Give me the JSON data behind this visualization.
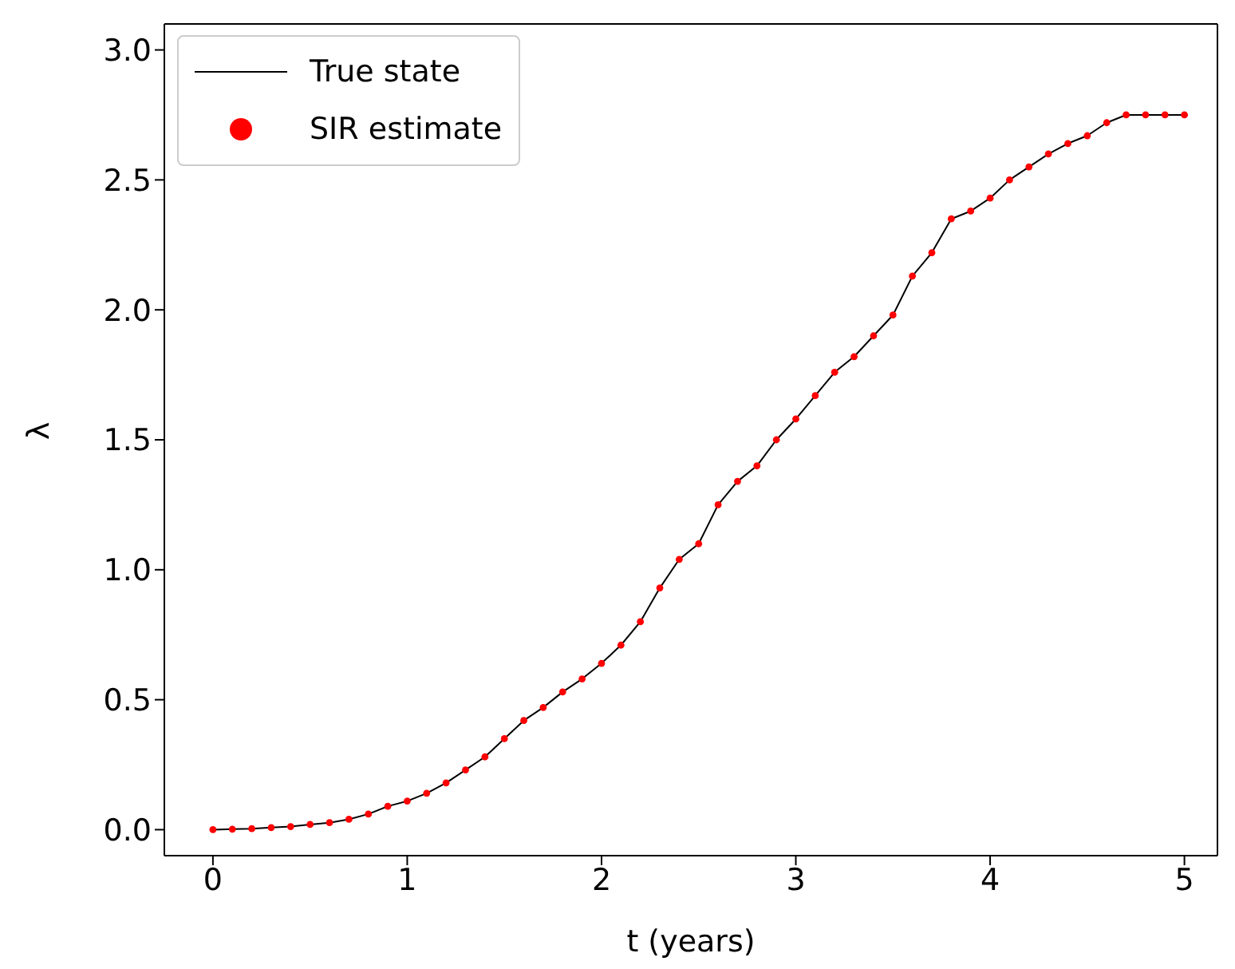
{
  "chart_data": {
    "type": "line",
    "xlabel": "t (years)",
    "ylabel": "λ",
    "x": [
      0,
      0.1,
      0.2,
      0.3,
      0.4,
      0.5,
      0.6,
      0.7,
      0.8,
      0.9,
      1.0,
      1.1,
      1.2,
      1.3,
      1.4,
      1.5,
      1.6,
      1.7,
      1.8,
      1.9,
      2.0,
      2.1,
      2.2,
      2.3,
      2.4,
      2.5,
      2.6,
      2.7,
      2.8,
      2.9,
      3.0,
      3.1,
      3.2,
      3.3,
      3.4,
      3.5,
      3.6,
      3.7,
      3.8,
      3.9,
      4.0,
      4.1,
      4.2,
      4.3,
      4.4,
      4.5,
      4.6,
      4.7,
      4.8,
      4.9,
      5.0
    ],
    "series": [
      {
        "name": "True state",
        "color": "#000000",
        "marker": "none",
        "values": [
          0,
          0.002,
          0.004,
          0.008,
          0.012,
          0.02,
          0.027,
          0.04,
          0.06,
          0.09,
          0.11,
          0.14,
          0.18,
          0.23,
          0.28,
          0.35,
          0.42,
          0.47,
          0.53,
          0.58,
          0.64,
          0.71,
          0.8,
          0.93,
          1.04,
          1.1,
          1.25,
          1.34,
          1.4,
          1.5,
          1.58,
          1.67,
          1.76,
          1.82,
          1.9,
          1.98,
          2.13,
          2.22,
          2.35,
          2.38,
          2.43,
          2.5,
          2.55,
          2.6,
          2.64,
          2.67,
          2.72,
          2.75,
          2.75,
          2.75,
          2.75
        ]
      },
      {
        "name": "SIR estimate",
        "type": "scatter",
        "color": "#ff0000",
        "marker": "circle",
        "values": [
          0,
          0.002,
          0.004,
          0.008,
          0.012,
          0.02,
          0.027,
          0.04,
          0.06,
          0.09,
          0.11,
          0.14,
          0.18,
          0.23,
          0.28,
          0.35,
          0.42,
          0.47,
          0.53,
          0.58,
          0.64,
          0.71,
          0.8,
          0.93,
          1.04,
          1.1,
          1.25,
          1.34,
          1.4,
          1.5,
          1.58,
          1.67,
          1.76,
          1.82,
          1.9,
          1.98,
          2.13,
          2.22,
          2.35,
          2.38,
          2.43,
          2.5,
          2.55,
          2.6,
          2.64,
          2.67,
          2.72,
          2.75,
          2.75,
          2.75,
          2.75
        ]
      }
    ],
    "xlim": [
      -0.25,
      5.17
    ],
    "xticks": [
      0,
      1,
      2,
      3,
      4,
      5
    ],
    "ylim": [
      -0.1,
      3.1
    ],
    "yticks": [
      {
        "value": 0,
        "label": "0.0"
      },
      0.5,
      {
        "value": 1,
        "label": "1.0"
      },
      1.5,
      {
        "value": 2,
        "label": "2.0"
      },
      2.5,
      {
        "value": 3,
        "label": "3.0"
      }
    ],
    "legend": "top left",
    "grid": false
  }
}
